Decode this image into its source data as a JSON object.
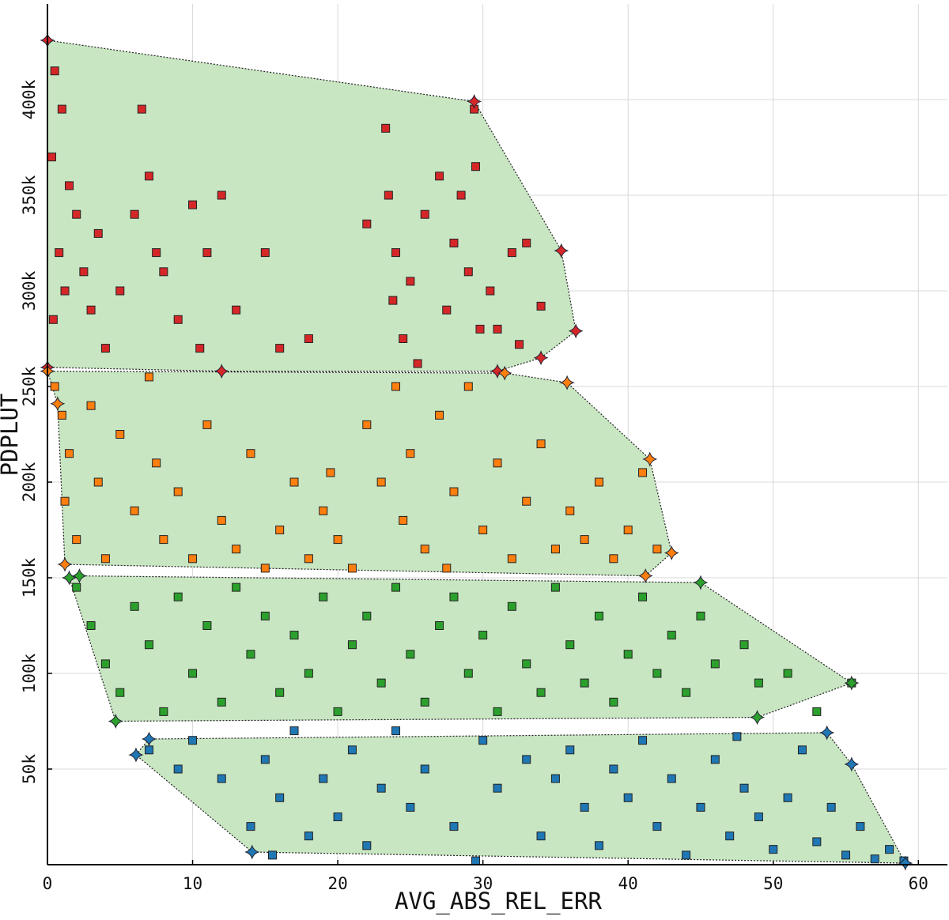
{
  "chart_data": {
    "type": "scatter",
    "x_label": "AVG_ABS_REL_ERR",
    "y_label": "PDPLUT",
    "xlim": [
      0,
      62
    ],
    "ylim": [
      0,
      450000
    ],
    "xticks": [
      0,
      10,
      20,
      30,
      40,
      50,
      60
    ],
    "yticks": [
      {
        "value": 50000,
        "label": "50k"
      },
      {
        "value": 100000,
        "label": "100k"
      },
      {
        "value": 150000,
        "label": "150k"
      },
      {
        "value": 200000,
        "label": "200k"
      },
      {
        "value": 250000,
        "label": "250k"
      },
      {
        "value": 300000,
        "label": "300k"
      },
      {
        "value": 350000,
        "label": "350k"
      },
      {
        "value": 400000,
        "label": "400k"
      }
    ],
    "grid": true,
    "hull_color": "#c8e6c2",
    "series": [
      {
        "color": "#d62728",
        "x": [
          0.5,
          1,
          0.3,
          1.5,
          2,
          0.8,
          2.5,
          1.2,
          3,
          0.4,
          3.5,
          4,
          5,
          6.5,
          7,
          6,
          7.5,
          8,
          9,
          10,
          11,
          10.5,
          12,
          13,
          15,
          16,
          18,
          22,
          23.3,
          23.5,
          24,
          23.8,
          24.5,
          25,
          26,
          27,
          27.5,
          28,
          28.5,
          29.4,
          29.5,
          29,
          29.8,
          30.5,
          31,
          32,
          33,
          34,
          32.5,
          25.5
        ],
        "values": [
          415000,
          395000,
          370000,
          355000,
          340000,
          320000,
          310000,
          300000,
          290000,
          285000,
          330000,
          270000,
          300000,
          395000,
          360000,
          340000,
          320000,
          310000,
          285000,
          345000,
          320000,
          270000,
          350000,
          290000,
          320000,
          270000,
          275000,
          335000,
          385000,
          350000,
          320000,
          295000,
          275000,
          305000,
          340000,
          360000,
          290000,
          325000,
          350000,
          395000,
          365000,
          310000,
          280000,
          300000,
          280000,
          320000,
          325000,
          292000,
          272000,
          262000
        ],
        "hull_x": [
          0,
          29.4,
          35.4,
          36.4,
          34,
          31,
          12,
          0
        ],
        "hull_y": [
          431000,
          399000,
          321000,
          279000,
          265000,
          258000,
          258000,
          260000
        ]
      },
      {
        "color": "#ff7f0e",
        "x": [
          0.5,
          1,
          1.5,
          1.2,
          2,
          3,
          3.5,
          4,
          5,
          6,
          7,
          7.5,
          8,
          9,
          10,
          11,
          12,
          13,
          14,
          15,
          16,
          17,
          18,
          19,
          20,
          21,
          22,
          23,
          24,
          24.5,
          25,
          26,
          27,
          28,
          29,
          30,
          31,
          32,
          33,
          34,
          35,
          36,
          37,
          38,
          39,
          40,
          41,
          42,
          19.5,
          27.5
        ],
        "values": [
          250000,
          235000,
          215000,
          190000,
          170000,
          240000,
          200000,
          160000,
          225000,
          185000,
          255000,
          210000,
          170000,
          195000,
          160000,
          230000,
          180000,
          165000,
          215000,
          155000,
          175000,
          200000,
          160000,
          185000,
          170000,
          155000,
          230000,
          200000,
          250000,
          180000,
          215000,
          165000,
          235000,
          195000,
          250000,
          175000,
          210000,
          160000,
          190000,
          220000,
          165000,
          185000,
          170000,
          200000,
          160000,
          175000,
          205000,
          165000,
          205000,
          155000
        ],
        "hull_x": [
          0,
          31.5,
          35.8,
          41.5,
          43,
          41.2,
          1.2,
          0.7
        ],
        "hull_y": [
          258000,
          257000,
          252000,
          212000,
          163000,
          151000,
          157000,
          241000
        ]
      },
      {
        "color": "#2ca02c",
        "x": [
          2,
          3,
          4,
          5,
          6,
          7,
          8,
          9,
          10,
          11,
          12,
          13,
          14,
          15,
          16,
          17,
          18,
          19,
          20,
          21,
          22,
          23,
          24,
          25,
          26,
          27,
          28,
          29,
          30,
          31,
          32,
          33,
          34,
          35,
          36,
          37,
          38,
          39,
          40,
          41,
          42,
          43,
          44,
          45,
          46,
          48,
          49,
          51,
          53,
          55.4
        ],
        "values": [
          145000,
          125000,
          105000,
          90000,
          135000,
          115000,
          80000,
          140000,
          100000,
          125000,
          85000,
          145000,
          110000,
          130000,
          90000,
          120000,
          100000,
          140000,
          80000,
          115000,
          130000,
          95000,
          145000,
          110000,
          85000,
          125000,
          140000,
          100000,
          120000,
          80000,
          135000,
          105000,
          90000,
          145000,
          115000,
          95000,
          130000,
          85000,
          110000,
          140000,
          100000,
          120000,
          90000,
          130000,
          105000,
          115000,
          95000,
          100000,
          80000,
          95000
        ],
        "hull_x": [
          2.2,
          45,
          55.4,
          48.9,
          4.7,
          1.5
        ],
        "hull_y": [
          151000,
          147500,
          95000,
          77000,
          75000,
          150000
        ]
      },
      {
        "color": "#1f77b4",
        "x": [
          7,
          9,
          10,
          12,
          14,
          15,
          15.5,
          16,
          17,
          18,
          19,
          20,
          21,
          22,
          23,
          24,
          25,
          26,
          28,
          30,
          31,
          33,
          34,
          35,
          36,
          37,
          38,
          39,
          40,
          41,
          42,
          43,
          44,
          45,
          46,
          47,
          48,
          49,
          50,
          51,
          52,
          53,
          54,
          55,
          56,
          57,
          58,
          59,
          29.5,
          47.5
        ],
        "values": [
          60000,
          50000,
          65000,
          45000,
          20000,
          55000,
          5000,
          35000,
          70000,
          15000,
          45000,
          25000,
          60000,
          10000,
          40000,
          70000,
          30000,
          50000,
          20000,
          65000,
          40000,
          55000,
          15000,
          45000,
          60000,
          30000,
          10000,
          50000,
          35000,
          65000,
          20000,
          45000,
          5000,
          30000,
          55000,
          15000,
          40000,
          25000,
          8000,
          35000,
          60000,
          12000,
          30000,
          5000,
          20000,
          3000,
          8000,
          2000,
          2000,
          67000
        ],
        "hull_x": [
          7,
          53.7,
          55.4,
          59.1,
          14.1,
          6.1
        ],
        "hull_y": [
          65700,
          69000,
          52500,
          800,
          6600,
          57400
        ]
      }
    ]
  }
}
